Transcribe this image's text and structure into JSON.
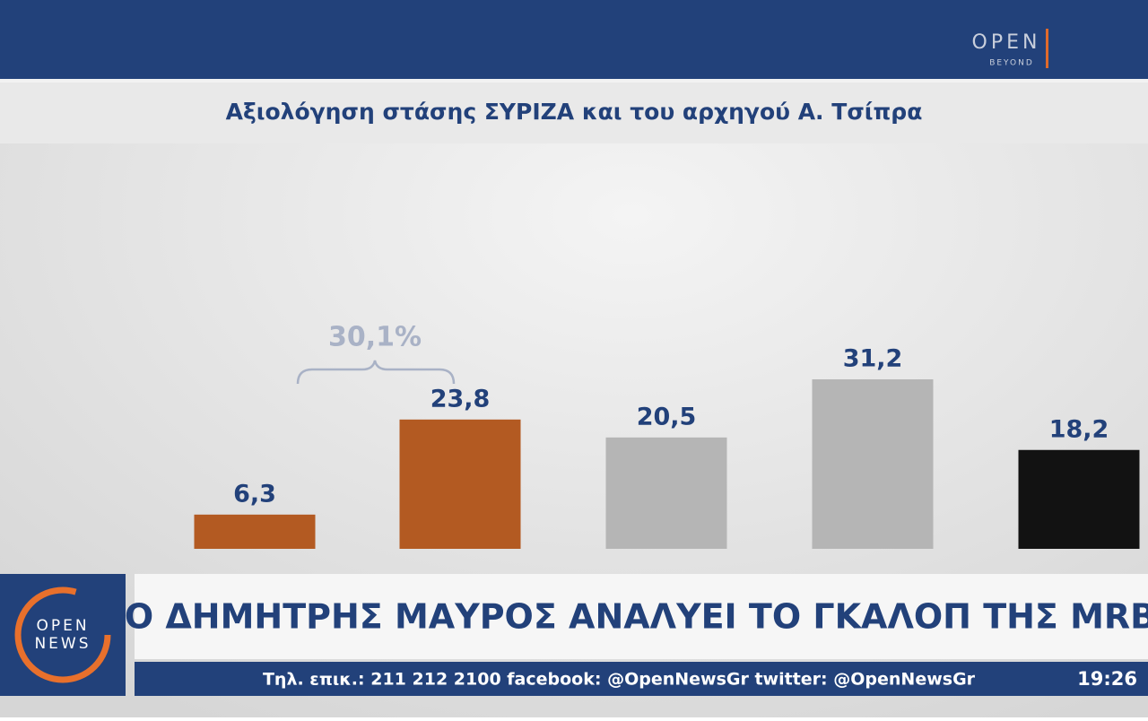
{
  "header": {
    "logo": "OPEN",
    "logo_sub": "BEYOND"
  },
  "chart_data": {
    "type": "bar",
    "title": "Αξιολόγηση στάσης ΣΥΡΙΖΑ και του αρχηγού Α. Τσίπρα",
    "values": [
      6.3,
      23.8,
      20.5,
      31.2,
      18.2
    ],
    "value_labels": [
      "6,3",
      "23,8",
      "20,5",
      "31,2",
      "18,2"
    ],
    "colors": [
      "#b35a22",
      "#b35a22",
      "#b5b5b5",
      "#b5b5b5",
      "#121212"
    ],
    "annotations": [
      {
        "text": "30,1%"
      }
    ]
  },
  "ticker": {
    "logo": "OPEN",
    "logo_sub": "NEWS",
    "headline": "Ο ΔΗΜΗΤΡΗΣ ΜΑΥΡΟΣ ΑΝΑΛΥΕΙ ΤΟ ΓΚΑΛΟΠ ΤΗΣ MRB",
    "contact": "Τηλ. επικ.: 211 212 2100 facebook: @OpenNewsGr twitter: @OpenNewsGr",
    "time": "19:26"
  }
}
